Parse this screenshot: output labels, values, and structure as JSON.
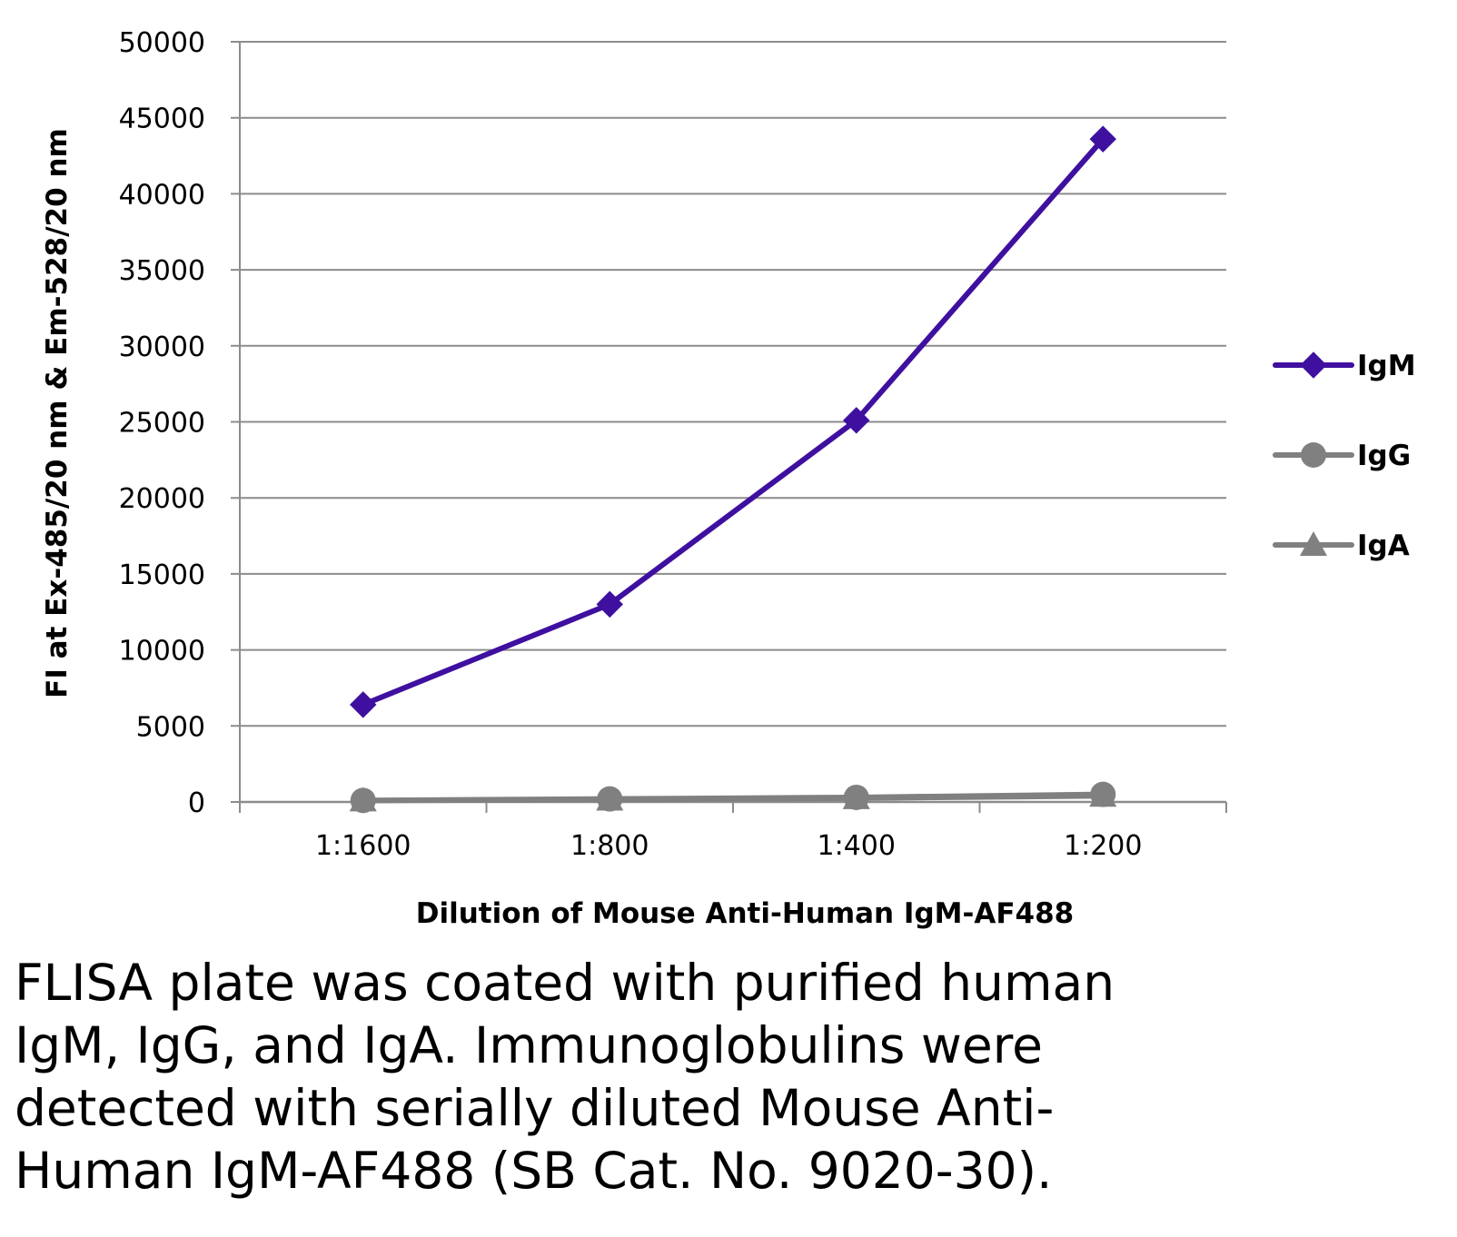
{
  "chart_data": {
    "type": "line",
    "categories": [
      "1:1600",
      "1:800",
      "1:400",
      "1:200"
    ],
    "series": [
      {
        "name": "IgM",
        "values": [
          6400,
          13000,
          25100,
          43600
        ],
        "color": "#3f10a0",
        "marker": "diamond"
      },
      {
        "name": "IgG",
        "values": [
          100,
          200,
          300,
          500
        ],
        "color": "#808080",
        "marker": "circle"
      },
      {
        "name": "IgA",
        "values": [
          100,
          150,
          250,
          400
        ],
        "color": "#808080",
        "marker": "triangle"
      }
    ],
    "ylim": [
      0,
      50000
    ],
    "yticks": [
      "50000",
      "45000",
      "40000",
      "35000",
      "30000",
      "25000",
      "20000",
      "15000",
      "10000",
      "5000",
      "0"
    ],
    "xlabel": "Dilution of Mouse Anti-Human IgM-AF488",
    "ylabel": "FI at Ex-485/20 nm & Em-528/20 nm",
    "legend_position": "right",
    "grid": true,
    "colors": {
      "igm": "#3f10a0",
      "gray": "#808080",
      "grid": "#8c8c8c"
    }
  },
  "caption": "FLISA plate was coated with purified human IgM, IgG, and IgA.  Immunoglobulins were detected with serially diluted Mouse Anti-Human IgM-AF488 (SB Cat. No. 9020-30)."
}
